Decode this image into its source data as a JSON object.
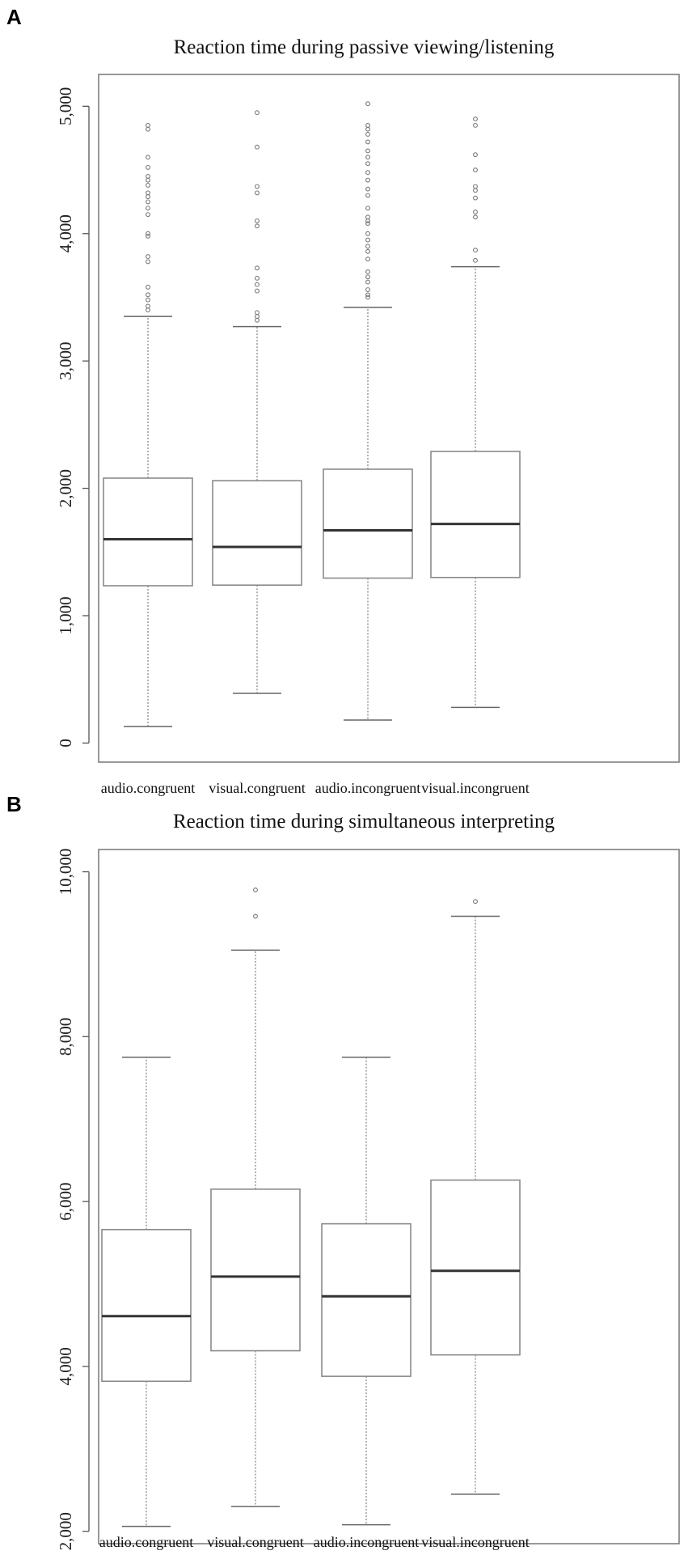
{
  "chart_data": [
    {
      "panel": "A",
      "type": "box",
      "title": "Reaction time during passive viewing/listening",
      "xlabel": "",
      "ylabel": "",
      "ylim": [
        -150,
        5250
      ],
      "yticks": [
        0,
        1000,
        2000,
        3000,
        4000,
        5000
      ],
      "ytick_labels": [
        "0",
        "1,000",
        "2,000",
        "3,000",
        "4,000",
        "5,000"
      ],
      "categories": [
        "audio.congruent",
        "visual.congruent",
        "audio.incongruent",
        "visual.incongruent"
      ],
      "boxes": [
        {
          "min": 130,
          "q1": 1235,
          "median": 1600,
          "q3": 2080,
          "max": 3350,
          "outliers": [
            3400,
            3430,
            3480,
            3520,
            3580,
            3780,
            3820,
            3980,
            4000,
            4150,
            4200,
            4250,
            4290,
            4320,
            4380,
            4420,
            4450,
            4520,
            4600,
            4820,
            4850
          ]
        },
        {
          "min": 390,
          "q1": 1240,
          "median": 1540,
          "q3": 2060,
          "max": 3270,
          "outliers": [
            3320,
            3350,
            3380,
            3550,
            3600,
            3650,
            3730,
            4060,
            4100,
            4320,
            4370,
            4680,
            4950
          ]
        },
        {
          "min": 180,
          "q1": 1295,
          "median": 1670,
          "q3": 2150,
          "max": 3420,
          "outliers": [
            3500,
            3520,
            3560,
            3620,
            3660,
            3700,
            3800,
            3860,
            3900,
            3950,
            4000,
            4080,
            4100,
            4130,
            4200,
            4300,
            4350,
            4420,
            4480,
            4550,
            4600,
            4650,
            4720,
            4780,
            4820,
            4850,
            5020
          ]
        },
        {
          "min": 280,
          "q1": 1300,
          "median": 1720,
          "q3": 2290,
          "max": 3740,
          "outliers": [
            3790,
            3870,
            4130,
            4170,
            4280,
            4340,
            4370,
            4500,
            4620,
            4850,
            4900
          ]
        }
      ]
    },
    {
      "panel": "B",
      "type": "box",
      "title": "Reaction time during simultaneous interpreting",
      "xlabel": "",
      "ylabel": "",
      "ylim": [
        1850,
        10270
      ],
      "yticks": [
        2000,
        4000,
        6000,
        8000,
        10000
      ],
      "ytick_labels": [
        "2,000",
        "4,000",
        "6,000",
        "8,000",
        "10,000"
      ],
      "categories": [
        "audio.congruent",
        "visual.congruent",
        "audio.incongruent",
        "visual.incongruent"
      ],
      "boxes": [
        {
          "min": 2060,
          "q1": 3820,
          "median": 4610,
          "q3": 5660,
          "max": 7750,
          "outliers": []
        },
        {
          "min": 2300,
          "q1": 4190,
          "median": 5090,
          "q3": 6150,
          "max": 9050,
          "outliers": [
            9460,
            9780
          ]
        },
        {
          "min": 2080,
          "q1": 3880,
          "median": 4850,
          "q3": 5730,
          "max": 7750,
          "outliers": []
        },
        {
          "min": 2450,
          "q1": 4140,
          "median": 5160,
          "q3": 6260,
          "max": 9460,
          "outliers": [
            9640
          ]
        }
      ]
    }
  ]
}
